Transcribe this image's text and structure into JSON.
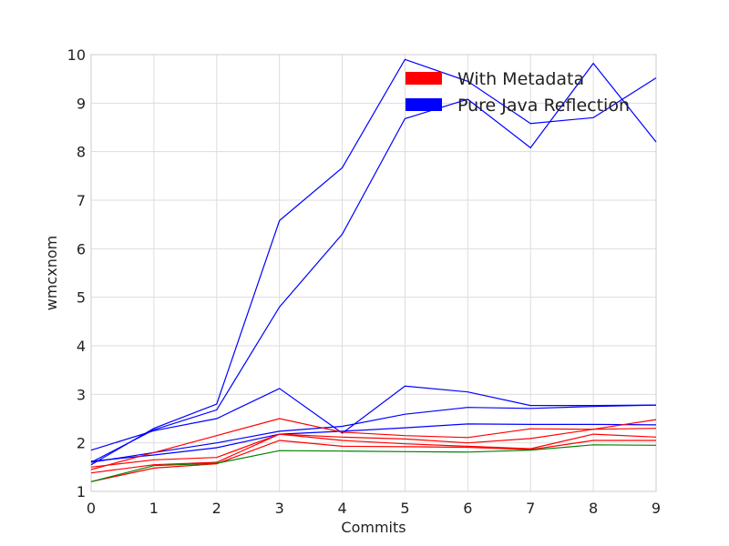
{
  "chart_data": {
    "type": "line",
    "xlabel": "Commits",
    "ylabel": "wmcxnom",
    "xlim": [
      0,
      9
    ],
    "ylim": [
      1,
      10
    ],
    "x": [
      0,
      1,
      2,
      3,
      4,
      5,
      6,
      7,
      8,
      9
    ],
    "x_ticks": [
      "0",
      "1",
      "2",
      "3",
      "4",
      "5",
      "6",
      "7",
      "8",
      "9"
    ],
    "y_ticks": [
      "1",
      "2",
      "3",
      "4",
      "5",
      "6",
      "7",
      "8",
      "9",
      "10"
    ],
    "grid": true,
    "legend": {
      "position": "top-right",
      "entries": [
        {
          "label": "With Metadata",
          "color": "#ff0000"
        },
        {
          "label": "Pure Java Reflection",
          "color": "#0000ff"
        }
      ]
    },
    "series": [
      {
        "color": "#0000ff",
        "values": [
          1.55,
          2.3,
          2.8,
          6.58,
          7.67,
          9.9,
          9.45,
          8.58,
          8.7,
          9.52
        ]
      },
      {
        "color": "#0000ff",
        "values": [
          1.6,
          2.27,
          2.68,
          4.8,
          6.3,
          8.68,
          9.08,
          8.08,
          9.82,
          8.2
        ]
      },
      {
        "color": "#0000ff",
        "values": [
          1.85,
          2.25,
          2.5,
          3.12,
          2.2,
          3.17,
          3.05,
          2.77,
          2.77,
          2.78
        ]
      },
      {
        "color": "#0000ff",
        "values": [
          1.6,
          1.8,
          2.0,
          2.24,
          2.34,
          2.59,
          2.73,
          2.71,
          2.75,
          2.78
        ]
      },
      {
        "color": "#0000ff",
        "values": [
          1.62,
          1.75,
          1.9,
          2.18,
          2.24,
          2.31,
          2.39,
          2.38,
          2.38,
          2.37
        ]
      },
      {
        "color": "#ff0000",
        "values": [
          1.45,
          1.8,
          2.15,
          2.5,
          2.22,
          2.15,
          2.11,
          2.29,
          2.28,
          2.48
        ]
      },
      {
        "color": "#ff0000",
        "values": [
          1.5,
          1.65,
          1.7,
          2.18,
          2.12,
          2.08,
          2.0,
          2.09,
          2.28,
          2.3
        ]
      },
      {
        "color": "#ff0000",
        "values": [
          1.38,
          1.55,
          1.6,
          2.18,
          2.05,
          1.98,
          1.93,
          1.88,
          2.18,
          2.12
        ]
      },
      {
        "color": "#ff0000",
        "values": [
          1.2,
          1.48,
          1.57,
          2.05,
          1.93,
          1.92,
          1.91,
          1.86,
          2.05,
          2.05
        ]
      },
      {
        "color": "#008000",
        "values": [
          1.2,
          1.53,
          1.58,
          1.84,
          1.83,
          1.82,
          1.81,
          1.85,
          1.96,
          1.95
        ]
      }
    ]
  }
}
